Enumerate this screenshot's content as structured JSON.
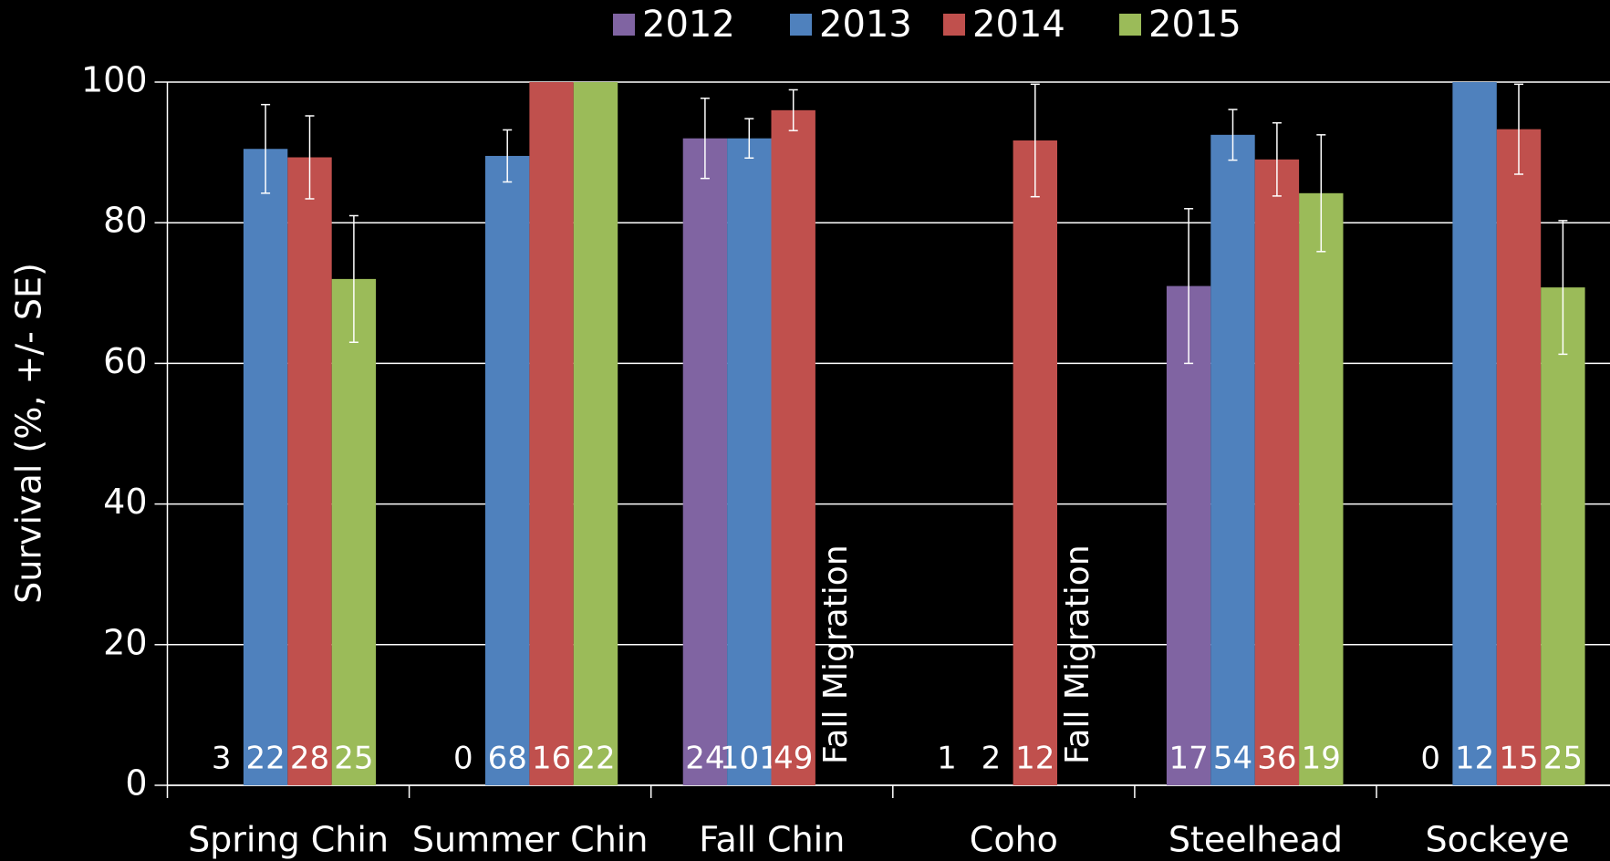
{
  "chart_data": {
    "type": "bar",
    "ylabel": "Survival (%, +/- SE)",
    "categories": [
      "Spring Chin",
      "Summer Chin",
      "Fall Chin",
      "Coho",
      "Steelhead",
      "Sockeye"
    ],
    "ylim": [
      0,
      100
    ],
    "yticks": [
      0,
      20,
      40,
      60,
      80,
      100
    ],
    "grid": true,
    "legend": "top",
    "series": [
      {
        "name": "2012",
        "color": "#8064a2",
        "values": [
          null,
          null,
          92,
          null,
          71,
          null
        ],
        "errors": [
          null,
          null,
          5.7,
          null,
          11,
          null
        ],
        "n": [
          3,
          0,
          24,
          1,
          17,
          0
        ],
        "notes": [
          null,
          null,
          null,
          null,
          null,
          null
        ]
      },
      {
        "name": "2013",
        "color": "#4f81bd",
        "values": [
          90.5,
          89.5,
          92,
          null,
          92.5,
          100
        ],
        "errors": [
          6.3,
          3.7,
          2.8,
          null,
          3.6,
          null
        ],
        "n": [
          22,
          68,
          101,
          2,
          54,
          12
        ],
        "notes": [
          null,
          null,
          null,
          null,
          null,
          null
        ]
      },
      {
        "name": "2014",
        "color": "#c0504d",
        "values": [
          89.3,
          100,
          96,
          91.7,
          89,
          93.3
        ],
        "errors": [
          5.9,
          null,
          2.9,
          8,
          5.2,
          6.4
        ],
        "n": [
          28,
          16,
          49,
          12,
          36,
          15
        ],
        "notes": [
          null,
          null,
          null,
          null,
          null,
          null
        ]
      },
      {
        "name": "2015",
        "color": "#9bbb59",
        "values": [
          72,
          100,
          null,
          null,
          84.2,
          70.8
        ],
        "errors": [
          9,
          null,
          null,
          null,
          8.3,
          9.5
        ],
        "n": [
          25,
          22,
          null,
          null,
          19,
          25
        ],
        "notes": [
          null,
          null,
          "Fall Migration",
          "Fall Migration",
          null,
          null
        ]
      }
    ]
  }
}
